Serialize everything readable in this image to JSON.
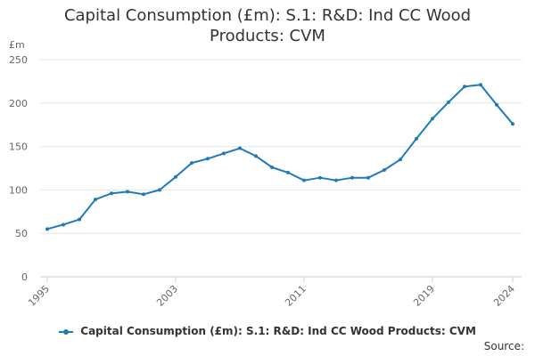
{
  "chart_data": {
    "type": "line",
    "title_lines": [
      "Capital Consumption (£m): S.1: R&D: Ind CC Wood",
      "Products: CVM"
    ],
    "ylabel": "£m",
    "xlabel": "",
    "ylim": [
      0,
      250
    ],
    "y_ticks": [
      0,
      50,
      100,
      150,
      200,
      250
    ],
    "xlim": [
      1995,
      2024
    ],
    "x_ticks": [
      1995,
      2003,
      2011,
      2019,
      2024
    ],
    "grid": true,
    "legend_position": "bottom",
    "series": [
      {
        "name": "Capital Consumption (£m): S.1: R&D: Ind CC Wood Products: CVM",
        "color": "#1f7ab8",
        "x": [
          1995,
          1996,
          1997,
          1998,
          1999,
          2000,
          2001,
          2002,
          2003,
          2004,
          2005,
          2006,
          2007,
          2008,
          2009,
          2010,
          2011,
          2012,
          2013,
          2014,
          2015,
          2016,
          2017,
          2018,
          2019,
          2020,
          2021,
          2022,
          2023,
          2024
        ],
        "values": [
          55,
          60,
          66,
          89,
          96,
          98,
          95,
          100,
          115,
          131,
          136,
          142,
          148,
          139,
          126,
          120,
          111,
          114,
          111,
          114,
          114,
          123,
          135,
          159,
          182,
          201,
          219,
          221,
          198,
          176
        ]
      }
    ]
  },
  "source_label": "Source:"
}
